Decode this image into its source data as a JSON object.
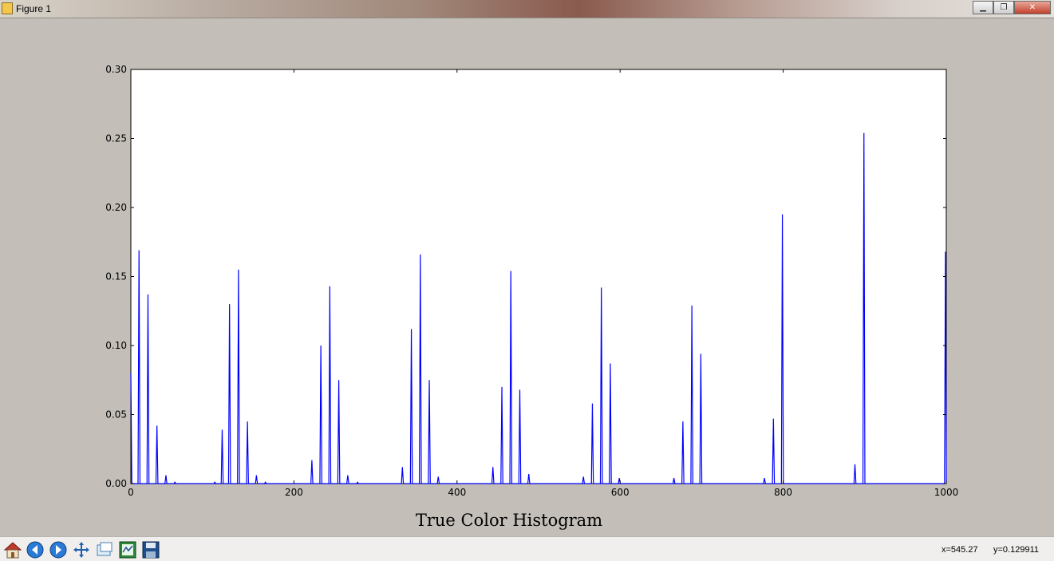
{
  "window": {
    "title": "Figure 1",
    "minimize": "▁",
    "maximize": "❐",
    "close": "✕"
  },
  "toolbar": {
    "buttons": [
      "home-icon",
      "back-arrow-icon",
      "forward-arrow-icon",
      "pan-icon",
      "zoom-icon",
      "subplots-icon",
      "save-icon"
    ]
  },
  "status": {
    "x_readout": "x=545.27",
    "y_readout": "y=0.129911"
  },
  "chart_data": {
    "type": "line",
    "title": "True Color Histogram",
    "xlabel": "",
    "ylabel": "",
    "xlim": [
      0,
      1000
    ],
    "ylim": [
      0,
      0.3
    ],
    "xticks": [
      0,
      200,
      400,
      600,
      800,
      1000
    ],
    "yticks": [
      0.0,
      0.05,
      0.1,
      0.15,
      0.2,
      0.25,
      0.3
    ],
    "ytick_labels": [
      "0.00",
      "0.05",
      "0.10",
      "0.15",
      "0.20",
      "0.25",
      "0.30"
    ],
    "grid": false,
    "line_color": "#0000ff",
    "peaks": [
      [
        0,
        0.08
      ],
      [
        10,
        0.169
      ],
      [
        21,
        0.137
      ],
      [
        32,
        0.042
      ],
      [
        43,
        0.006
      ],
      [
        54,
        0.001
      ],
      [
        103,
        0.001
      ],
      [
        112,
        0.039
      ],
      [
        121,
        0.13
      ],
      [
        132,
        0.155
      ],
      [
        143,
        0.045
      ],
      [
        154,
        0.006
      ],
      [
        165,
        0.001
      ],
      [
        222,
        0.017
      ],
      [
        233,
        0.1
      ],
      [
        244,
        0.143
      ],
      [
        255,
        0.075
      ],
      [
        266,
        0.006
      ],
      [
        278,
        0.001
      ],
      [
        333,
        0.012
      ],
      [
        344,
        0.112
      ],
      [
        355,
        0.166
      ],
      [
        366,
        0.075
      ],
      [
        377,
        0.005
      ],
      [
        444,
        0.012
      ],
      [
        455,
        0.07
      ],
      [
        466,
        0.154
      ],
      [
        477,
        0.068
      ],
      [
        488,
        0.007
      ],
      [
        555,
        0.005
      ],
      [
        566,
        0.058
      ],
      [
        577,
        0.142
      ],
      [
        588,
        0.087
      ],
      [
        599,
        0.004
      ],
      [
        666,
        0.004
      ],
      [
        677,
        0.045
      ],
      [
        688,
        0.129
      ],
      [
        699,
        0.094
      ],
      [
        777,
        0.004
      ],
      [
        788,
        0.047
      ],
      [
        799,
        0.195
      ],
      [
        888,
        0.014
      ],
      [
        899,
        0.254
      ],
      [
        999,
        0.168
      ]
    ]
  }
}
